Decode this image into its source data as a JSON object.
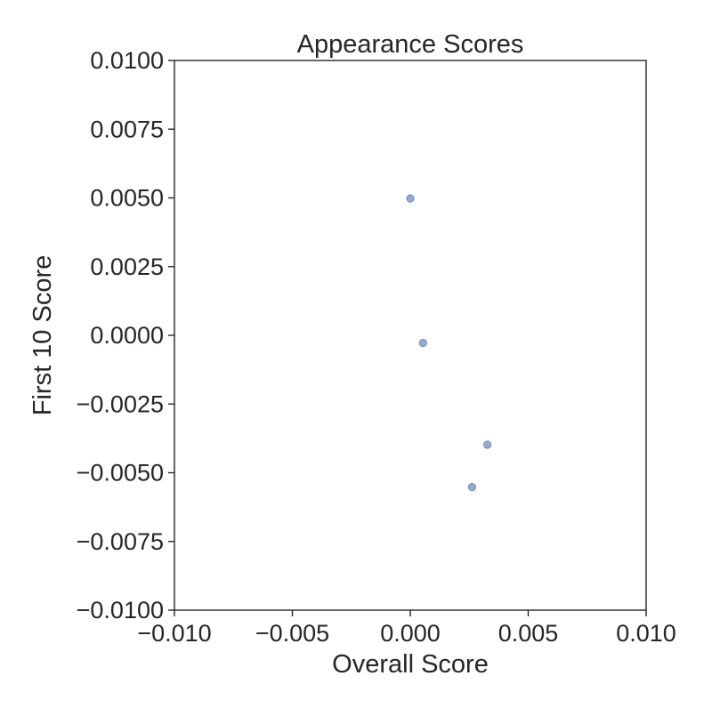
{
  "chart_data": {
    "type": "scatter",
    "title": "Appearance Scores",
    "xlabel": "Overall Score",
    "ylabel": "First 10 Score",
    "xlim": [
      -0.01,
      0.01
    ],
    "ylim": [
      -0.01,
      0.01
    ],
    "xticks": [
      -0.01,
      -0.005,
      0.0,
      0.005,
      0.01
    ],
    "xtick_labels": [
      "−0.010",
      "−0.005",
      "0.000",
      "0.005",
      "0.010"
    ],
    "yticks": [
      -0.01,
      -0.0075,
      -0.005,
      -0.0025,
      0.0,
      0.0025,
      0.005,
      0.0075,
      0.01
    ],
    "ytick_labels": [
      "−0.0100",
      "−0.0075",
      "−0.0050",
      "−0.0025",
      "0.0000",
      "0.0025",
      "0.0050",
      "0.0075",
      "0.0100"
    ],
    "grid": false,
    "point_color": "#4c72b0",
    "points": [
      {
        "x": 0.0,
        "y": 0.00498
      },
      {
        "x": 0.00054,
        "y": -0.00028
      },
      {
        "x": 0.00327,
        "y": -0.00398
      },
      {
        "x": 0.00262,
        "y": -0.00552
      }
    ]
  }
}
